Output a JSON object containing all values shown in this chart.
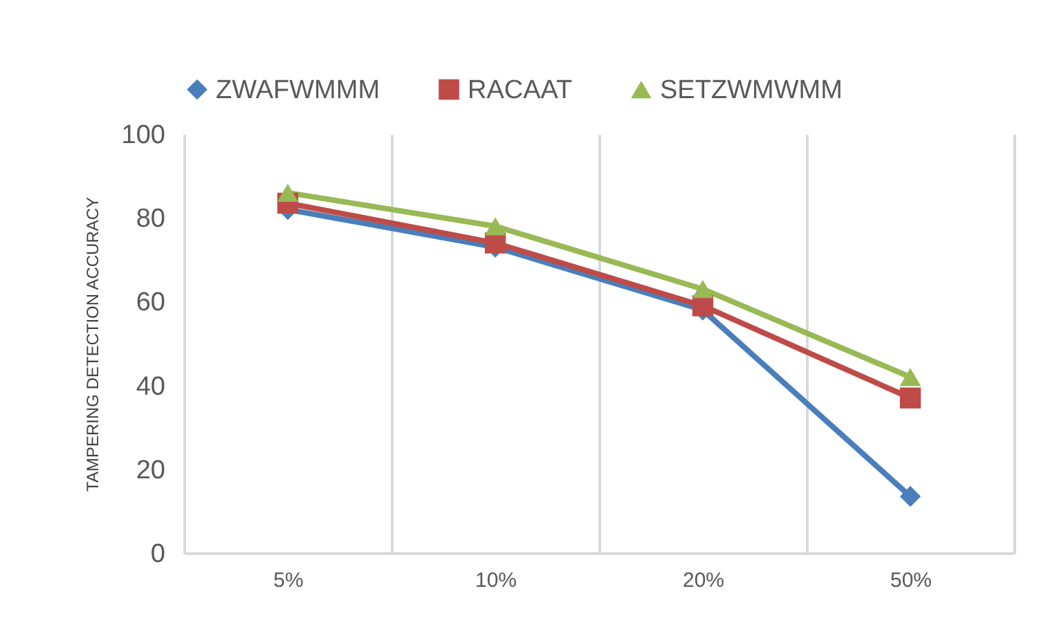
{
  "chart_data": {
    "type": "line",
    "ylabel": "TAMPERING DETECTION ACCURACY",
    "categories": [
      "5%",
      "10%",
      "20%",
      "50%"
    ],
    "series": [
      {
        "name": "ZWAFWMMM",
        "color": "#4a7ebb",
        "marker": "diamond",
        "values": [
          82,
          73,
          58,
          13.5
        ]
      },
      {
        "name": "RACAAT",
        "color": "#be4b48",
        "marker": "square",
        "values": [
          83.5,
          74,
          59,
          37
        ]
      },
      {
        "name": "SETZWMWMM",
        "color": "#98b954",
        "marker": "triangle",
        "values": [
          86,
          78,
          63,
          42
        ]
      }
    ],
    "ylim": [
      0,
      100
    ],
    "yticks": [
      0,
      20,
      40,
      60,
      80,
      100
    ],
    "grid": "x",
    "legend": "top",
    "line_style": "solid"
  }
}
